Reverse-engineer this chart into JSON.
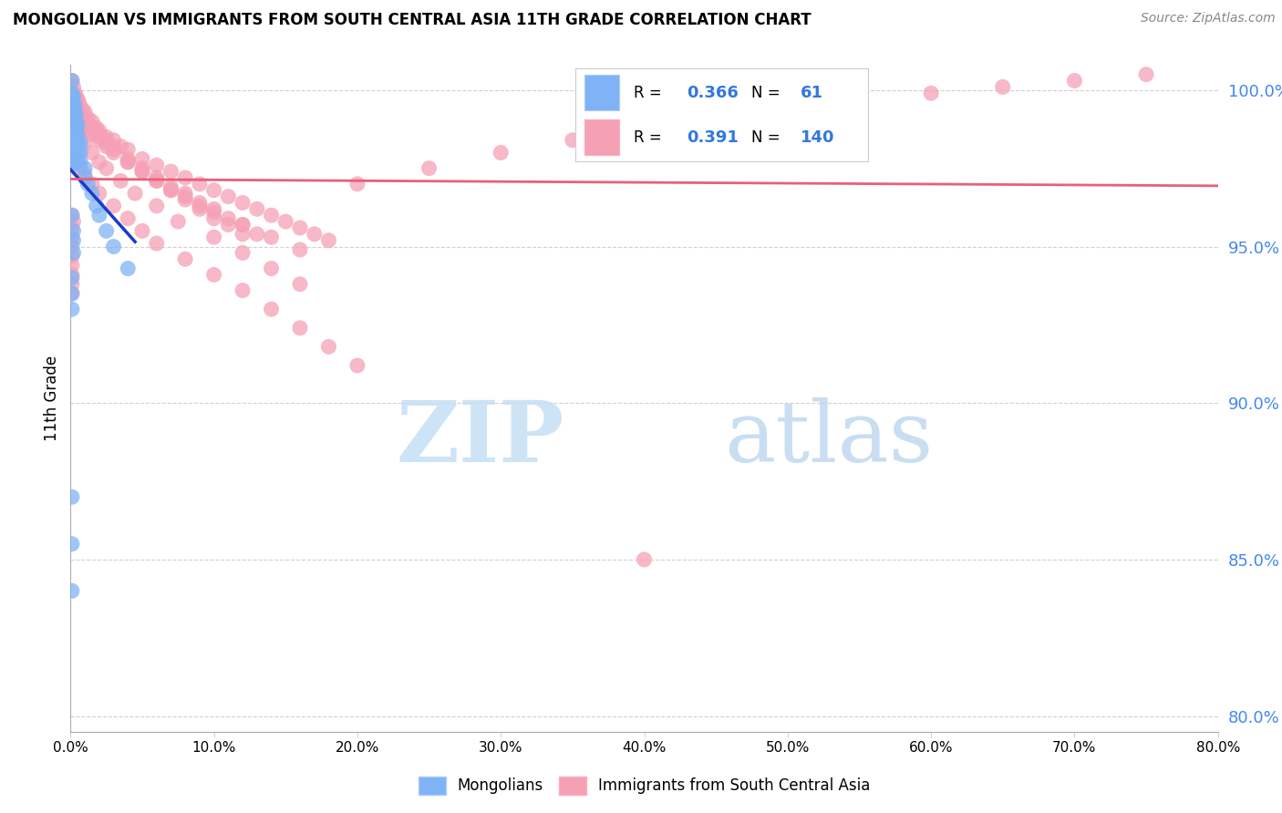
{
  "title": "MONGOLIAN VS IMMIGRANTS FROM SOUTH CENTRAL ASIA 11TH GRADE CORRELATION CHART",
  "source": "Source: ZipAtlas.com",
  "ylabel": "11th Grade",
  "y_ticks_pct": [
    80.0,
    85.0,
    90.0,
    95.0,
    100.0
  ],
  "x_lim": [
    0.0,
    0.8
  ],
  "y_lim": [
    0.795,
    1.008
  ],
  "legend_blue_r": "0.366",
  "legend_blue_n": "61",
  "legend_pink_r": "0.391",
  "legend_pink_n": "140",
  "mongolian_color": "#7fb3f5",
  "immigrant_color": "#f5a0b5",
  "trend_blue_color": "#1a3acc",
  "trend_pink_color": "#e8607a",
  "watermark_color": "#d5eaf8",
  "watermark": "ZIPatlas",
  "blue_x": [
    0.001,
    0.001,
    0.001,
    0.001,
    0.001,
    0.001,
    0.001,
    0.001,
    0.001,
    0.001,
    0.002,
    0.002,
    0.002,
    0.002,
    0.002,
    0.002,
    0.002,
    0.002,
    0.002,
    0.002,
    0.003,
    0.003,
    0.003,
    0.003,
    0.003,
    0.003,
    0.003,
    0.003,
    0.004,
    0.004,
    0.004,
    0.004,
    0.004,
    0.004,
    0.005,
    0.005,
    0.005,
    0.005,
    0.005,
    0.007,
    0.007,
    0.007,
    0.01,
    0.01,
    0.012,
    0.015,
    0.018,
    0.02,
    0.025,
    0.03,
    0.04,
    0.001,
    0.001,
    0.001,
    0.001,
    0.002,
    0.002,
    0.002,
    0.001,
    0.001,
    0.001
  ],
  "blue_y": [
    1.003,
    0.999,
    0.997,
    0.995,
    0.993,
    0.99,
    0.988,
    0.985,
    0.983,
    0.98,
    0.998,
    0.996,
    0.994,
    0.992,
    0.99,
    0.988,
    0.985,
    0.982,
    0.979,
    0.976,
    0.995,
    0.993,
    0.99,
    0.988,
    0.985,
    0.982,
    0.98,
    0.977,
    0.992,
    0.989,
    0.987,
    0.984,
    0.981,
    0.978,
    0.989,
    0.986,
    0.983,
    0.98,
    0.977,
    0.983,
    0.98,
    0.977,
    0.975,
    0.972,
    0.97,
    0.967,
    0.963,
    0.96,
    0.955,
    0.95,
    0.943,
    0.87,
    0.855,
    0.84,
    0.96,
    0.955,
    0.952,
    0.948,
    0.94,
    0.935,
    0.93
  ],
  "pink_x": [
    0.001,
    0.002,
    0.003,
    0.004,
    0.005,
    0.006,
    0.008,
    0.01,
    0.012,
    0.015,
    0.018,
    0.02,
    0.025,
    0.03,
    0.035,
    0.04,
    0.05,
    0.06,
    0.07,
    0.08,
    0.09,
    0.1,
    0.11,
    0.12,
    0.13,
    0.14,
    0.15,
    0.16,
    0.17,
    0.18,
    0.001,
    0.002,
    0.003,
    0.005,
    0.007,
    0.01,
    0.015,
    0.02,
    0.025,
    0.03,
    0.04,
    0.05,
    0.06,
    0.07,
    0.08,
    0.09,
    0.1,
    0.11,
    0.12,
    0.13,
    0.001,
    0.002,
    0.004,
    0.006,
    0.01,
    0.015,
    0.02,
    0.025,
    0.03,
    0.04,
    0.05,
    0.06,
    0.07,
    0.08,
    0.09,
    0.1,
    0.12,
    0.14,
    0.16,
    0.002,
    0.005,
    0.01,
    0.015,
    0.02,
    0.025,
    0.03,
    0.04,
    0.05,
    0.06,
    0.07,
    0.08,
    0.09,
    0.1,
    0.11,
    0.12,
    0.001,
    0.003,
    0.006,
    0.01,
    0.015,
    0.02,
    0.025,
    0.035,
    0.045,
    0.06,
    0.075,
    0.1,
    0.12,
    0.14,
    0.16,
    0.2,
    0.25,
    0.3,
    0.35,
    0.4,
    0.45,
    0.5,
    0.55,
    0.6,
    0.65,
    0.7,
    0.75,
    0.4,
    0.003,
    0.005,
    0.007,
    0.01,
    0.015,
    0.02,
    0.03,
    0.04,
    0.05,
    0.06,
    0.08,
    0.1,
    0.12,
    0.14,
    0.16,
    0.18,
    0.2,
    0.001,
    0.002,
    0.001,
    0.001,
    0.001,
    0.001,
    0.001,
    0.001,
    0.001,
    0.001
  ],
  "pink_y": [
    1.003,
    1.001,
    0.999,
    0.998,
    0.997,
    0.996,
    0.994,
    0.993,
    0.991,
    0.99,
    0.988,
    0.987,
    0.985,
    0.984,
    0.982,
    0.981,
    0.978,
    0.976,
    0.974,
    0.972,
    0.97,
    0.968,
    0.966,
    0.964,
    0.962,
    0.96,
    0.958,
    0.956,
    0.954,
    0.952,
    0.999,
    0.997,
    0.996,
    0.994,
    0.992,
    0.99,
    0.988,
    0.986,
    0.984,
    0.982,
    0.978,
    0.975,
    0.972,
    0.969,
    0.967,
    0.964,
    0.962,
    0.959,
    0.957,
    0.954,
    0.996,
    0.994,
    0.992,
    0.99,
    0.988,
    0.986,
    0.984,
    0.982,
    0.98,
    0.977,
    0.974,
    0.971,
    0.968,
    0.966,
    0.963,
    0.961,
    0.957,
    0.953,
    0.949,
    0.993,
    0.991,
    0.989,
    0.987,
    0.985,
    0.983,
    0.981,
    0.977,
    0.974,
    0.971,
    0.968,
    0.965,
    0.962,
    0.959,
    0.957,
    0.954,
    0.99,
    0.988,
    0.985,
    0.983,
    0.98,
    0.977,
    0.975,
    0.971,
    0.967,
    0.963,
    0.958,
    0.953,
    0.948,
    0.943,
    0.938,
    0.97,
    0.975,
    0.98,
    0.984,
    0.988,
    0.992,
    0.995,
    0.997,
    0.999,
    1.001,
    1.003,
    1.005,
    0.85,
    0.979,
    0.977,
    0.975,
    0.973,
    0.97,
    0.967,
    0.963,
    0.959,
    0.955,
    0.951,
    0.946,
    0.941,
    0.936,
    0.93,
    0.924,
    0.918,
    0.912,
    0.96,
    0.958,
    0.956,
    0.953,
    0.95,
    0.947,
    0.944,
    0.941,
    0.938,
    0.935
  ]
}
